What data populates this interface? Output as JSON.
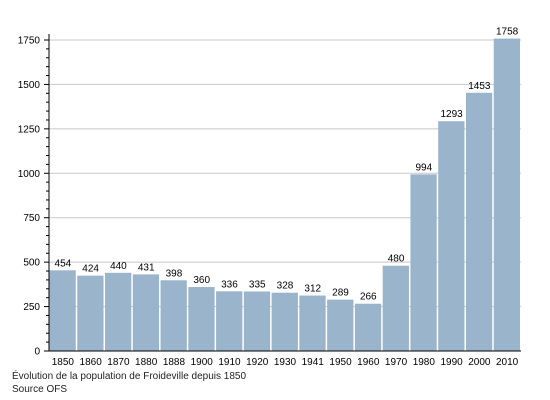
{
  "chart_data": {
    "type": "bar",
    "categories": [
      "1850",
      "1860",
      "1870",
      "1880",
      "1888",
      "1900",
      "1910",
      "1920",
      "1930",
      "1941",
      "1950",
      "1960",
      "1970",
      "1980",
      "1990",
      "2000",
      "2010"
    ],
    "values": [
      454,
      424,
      440,
      431,
      398,
      360,
      336,
      335,
      328,
      312,
      289,
      266,
      480,
      994,
      1293,
      1453,
      1758
    ],
    "ylim": [
      0,
      1750
    ],
    "yticks": [
      0,
      250,
      500,
      750,
      1000,
      1250,
      1500,
      1750
    ],
    "grid": true,
    "bar_color": "#9ab4cc",
    "grid_color": "#c8c8c8"
  },
  "caption": {
    "line1": "Évolution de la population de Froideville depuis 1850",
    "line2": "Source OFS"
  }
}
